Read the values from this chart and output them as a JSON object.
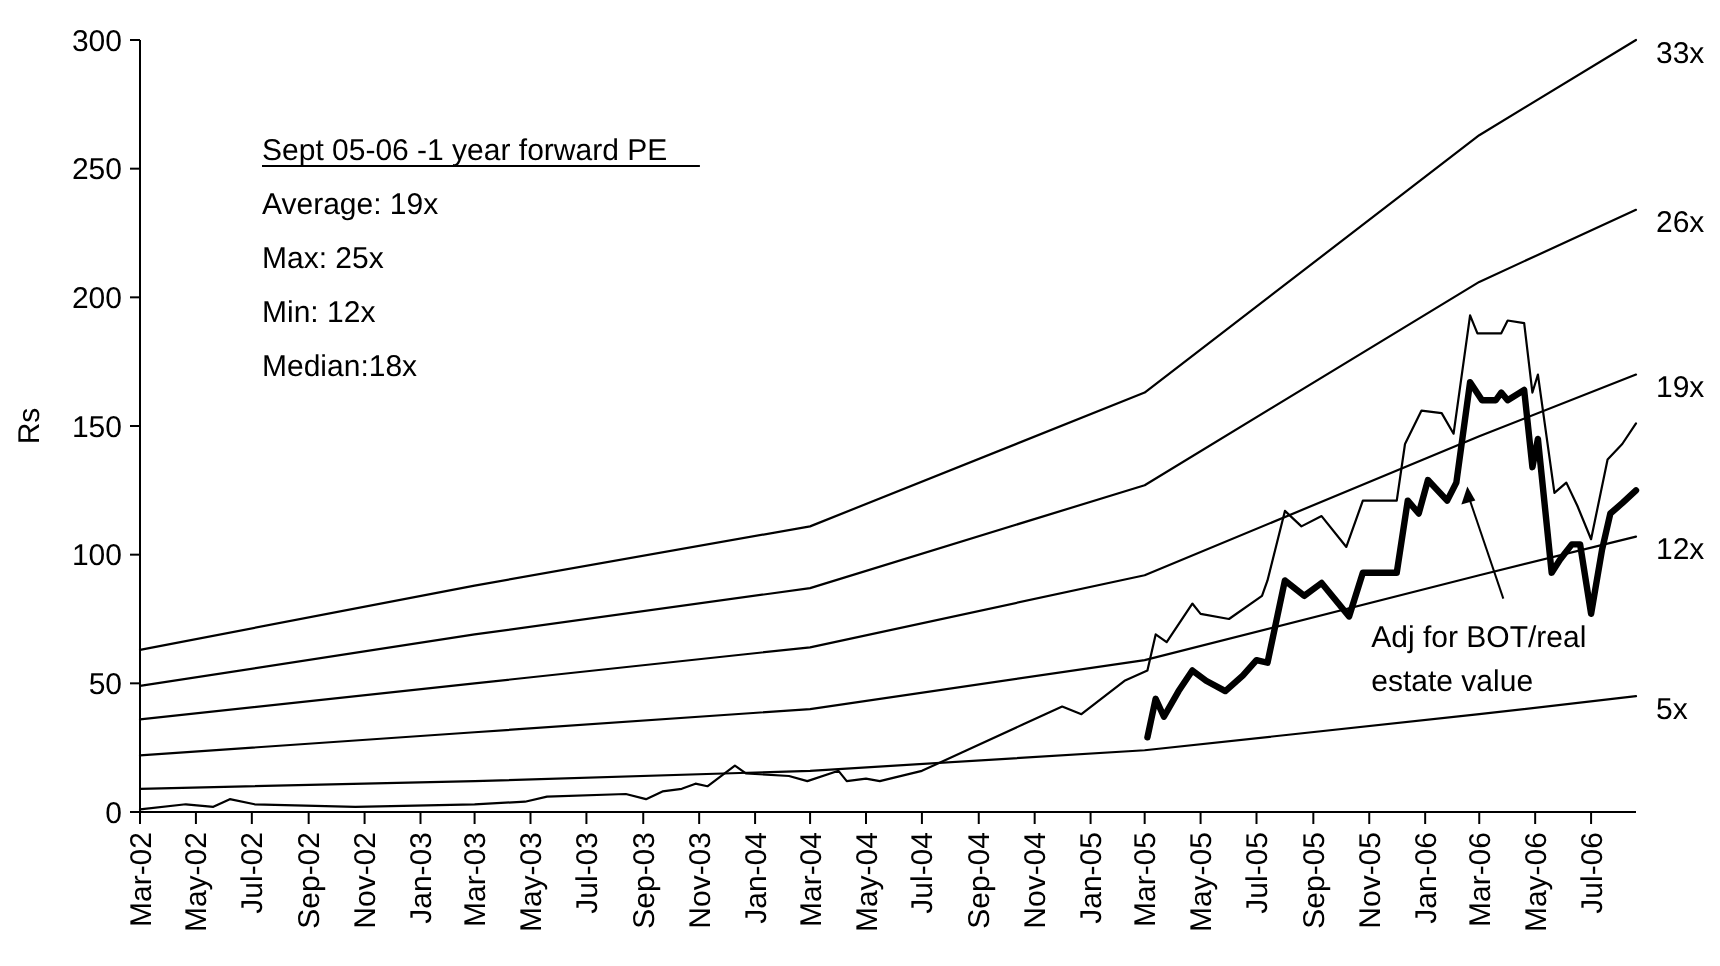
{
  "chart_data": {
    "type": "line",
    "ylabel": "Rs",
    "xlim": [
      "2002-03-01",
      "2006-08-19"
    ],
    "ylim": [
      0,
      300
    ],
    "yticks": [
      0,
      50,
      100,
      150,
      200,
      250,
      300
    ],
    "xticks": [
      {
        "value": "2002-03-01",
        "label": "Mar-02"
      },
      {
        "value": "2002-05-01",
        "label": "May-02"
      },
      {
        "value": "2002-07-01",
        "label": "Jul-02"
      },
      {
        "value": "2002-09-01",
        "label": "Sep-02"
      },
      {
        "value": "2002-11-01",
        "label": "Nov-02"
      },
      {
        "value": "2003-01-01",
        "label": "Jan-03"
      },
      {
        "value": "2003-03-01",
        "label": "Mar-03"
      },
      {
        "value": "2003-05-01",
        "label": "May-03"
      },
      {
        "value": "2003-07-01",
        "label": "Jul-03"
      },
      {
        "value": "2003-09-01",
        "label": "Sep-03"
      },
      {
        "value": "2003-11-01",
        "label": "Nov-03"
      },
      {
        "value": "2004-01-01",
        "label": "Jan-04"
      },
      {
        "value": "2004-03-01",
        "label": "Mar-04"
      },
      {
        "value": "2004-05-01",
        "label": "May-04"
      },
      {
        "value": "2004-07-01",
        "label": "Jul-04"
      },
      {
        "value": "2004-09-01",
        "label": "Sep-04"
      },
      {
        "value": "2004-11-01",
        "label": "Nov-04"
      },
      {
        "value": "2005-01-01",
        "label": "Jan-05"
      },
      {
        "value": "2005-03-01",
        "label": "Mar-05"
      },
      {
        "value": "2005-05-01",
        "label": "May-05"
      },
      {
        "value": "2005-07-01",
        "label": "Jul-05"
      },
      {
        "value": "2005-09-01",
        "label": "Sep-05"
      },
      {
        "value": "2005-11-01",
        "label": "Nov-05"
      },
      {
        "value": "2006-01-01",
        "label": "Jan-06"
      },
      {
        "value": "2006-03-01",
        "label": "Mar-06"
      },
      {
        "value": "2006-05-01",
        "label": "May-06"
      },
      {
        "value": "2006-07-01",
        "label": "Jul-06"
      }
    ],
    "grid": false,
    "legend": false,
    "marker": "none",
    "line_style": "solid",
    "series": [
      {
        "name": "33x",
        "color": "#000000",
        "x": [
          "2002-03-01",
          "2003-03-01",
          "2004-03-01",
          "2005-03-01",
          "2006-03-01",
          "2006-08-19"
        ],
        "values": [
          63,
          88,
          111,
          163,
          263,
          300
        ]
      },
      {
        "name": "26x",
        "color": "#000000",
        "x": [
          "2002-03-01",
          "2003-03-01",
          "2004-03-01",
          "2005-03-01",
          "2006-03-01",
          "2006-08-19"
        ],
        "values": [
          49,
          69,
          87,
          127,
          206,
          234
        ]
      },
      {
        "name": "19x",
        "color": "#000000",
        "x": [
          "2002-03-01",
          "2003-03-01",
          "2004-03-01",
          "2005-03-01",
          "2006-03-01",
          "2006-08-19"
        ],
        "values": [
          36,
          50,
          64,
          92,
          146,
          170
        ]
      },
      {
        "name": "12x",
        "color": "#000000",
        "x": [
          "2002-03-01",
          "2003-03-01",
          "2004-03-01",
          "2005-03-01",
          "2006-03-01",
          "2006-08-19"
        ],
        "values": [
          22,
          31,
          40,
          59,
          92,
          107
        ]
      },
      {
        "name": "5x",
        "color": "#000000",
        "x": [
          "2002-03-01",
          "2003-03-01",
          "2004-03-01",
          "2005-03-01",
          "2006-03-01",
          "2006-08-19"
        ],
        "values": [
          9,
          12,
          16,
          24,
          38,
          45
        ]
      },
      {
        "color": "#000000",
        "x": [
          "2002-03-01",
          "2002-04-20",
          "2002-05-20",
          "2002-06-07",
          "2002-07-04",
          "2002-10-22",
          "2003-03-01",
          "2003-04-25",
          "2003-05-19",
          "2003-08-13",
          "2003-09-04",
          "2003-09-22",
          "2003-10-13",
          "2003-10-28",
          "2003-11-10",
          "2003-12-10",
          "2003-12-22",
          "2004-02-07",
          "2004-02-27",
          "2004-04-01",
          "2004-04-10",
          "2004-05-01",
          "2004-05-16",
          "2004-07-01",
          "2004-08-13",
          "2004-10-19",
          "2004-12-01",
          "2004-12-22",
          "2005-02-07",
          "2005-03-04",
          "2005-03-13",
          "2005-03-25",
          "2005-04-22",
          "2005-05-01",
          "2005-06-01",
          "2005-07-07",
          "2005-07-13",
          "2005-08-01",
          "2005-08-19",
          "2005-09-10",
          "2005-10-07",
          "2005-10-25",
          "2005-12-01",
          "2005-12-10",
          "2005-12-28",
          "2006-01-19",
          "2006-02-01",
          "2006-02-19",
          "2006-02-27",
          "2006-03-25",
          "2006-04-01",
          "2006-04-19",
          "2006-04-28",
          "2006-05-04",
          "2006-05-22",
          "2006-06-04",
          "2006-06-16",
          "2006-07-01",
          "2006-07-19",
          "2006-08-04",
          "2006-08-19"
        ],
        "values": [
          1,
          3,
          2,
          5,
          3,
          2,
          3,
          4,
          6,
          7,
          5,
          8,
          9,
          11,
          10,
          18,
          15,
          14,
          12,
          16,
          12,
          13,
          12,
          16,
          23,
          34,
          41,
          38,
          51,
          55,
          69,
          66,
          81,
          77,
          75,
          84,
          90,
          117,
          111,
          115,
          103,
          121,
          121,
          143,
          156,
          155,
          147,
          193,
          186,
          186,
          191,
          190,
          163,
          170,
          124,
          128,
          119,
          106,
          137,
          143,
          151
        ]
      },
      {
        "color": "#000000",
        "x": [
          "2005-03-04",
          "2005-03-13",
          "2005-03-22",
          "2005-04-07",
          "2005-04-22",
          "2005-05-07",
          "2005-05-28",
          "2005-06-16",
          "2005-07-01",
          "2005-07-13",
          "2005-08-01",
          "2005-08-22",
          "2005-09-10",
          "2005-10-10",
          "2005-10-25",
          "2005-12-01",
          "2005-12-13",
          "2005-12-25",
          "2006-01-04",
          "2006-01-25",
          "2006-02-04",
          "2006-02-19",
          "2006-03-04",
          "2006-03-19",
          "2006-03-25",
          "2006-04-01",
          "2006-04-19",
          "2006-04-28",
          "2006-05-04",
          "2006-05-19",
          "2006-05-28",
          "2006-06-10",
          "2006-06-19",
          "2006-07-01",
          "2006-07-13",
          "2006-07-22",
          "2006-08-04",
          "2006-08-19"
        ],
        "values": [
          29,
          44,
          37,
          47,
          55,
          51,
          47,
          53,
          59,
          58,
          90,
          84,
          89,
          76,
          93,
          93,
          121,
          116,
          129,
          121,
          128,
          167,
          160,
          160,
          163,
          160,
          164,
          134,
          145,
          93,
          98,
          104,
          104,
          77,
          102,
          116,
          120,
          125
        ]
      }
    ],
    "annotations": [
      "Sept 05-06 -1 year forward PE",
      "Average: 19x",
      "Max: 25x",
      "Min: 12x",
      "Median:18x",
      {
        "text": "Adj for BOT/real estate value",
        "x": "2006-02-16",
        "y": 128
      }
    ]
  }
}
